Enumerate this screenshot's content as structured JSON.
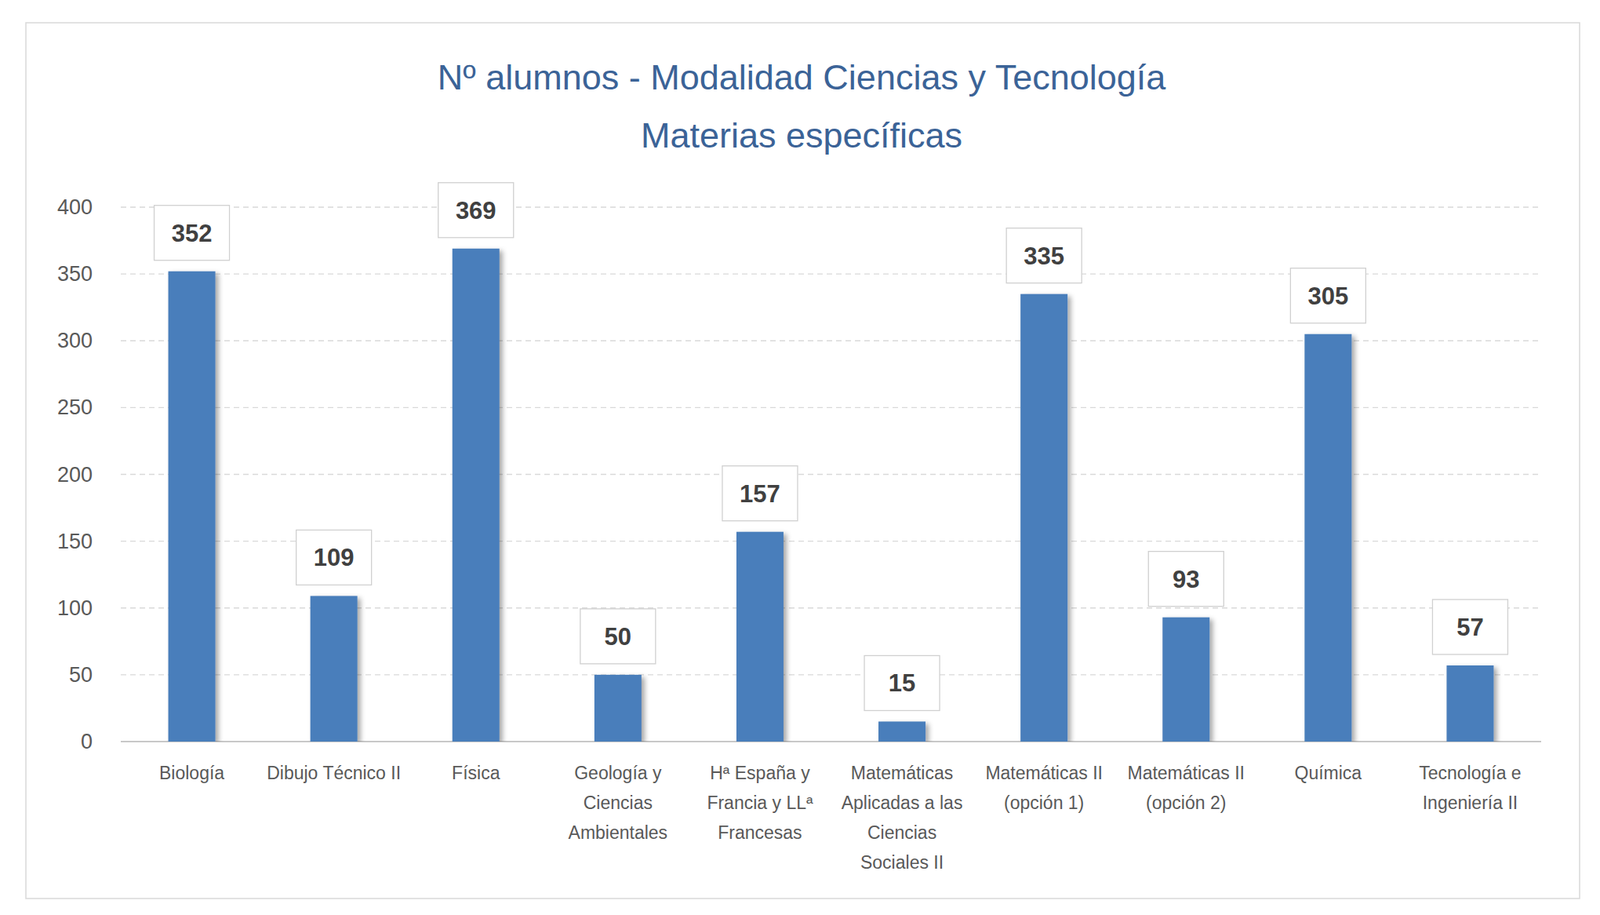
{
  "chart_data": {
    "type": "bar",
    "title": "Nº alumnos - Modalidad Ciencias y Tecnología",
    "subtitle": "Materias específicas",
    "categories": [
      "Biología",
      "Dibujo Técnico II",
      "Física",
      "Geología y Ciencias Ambientales",
      "Hª España y Francia y LLª Francesas",
      "Matemáticas Aplicadas a las Ciencias Sociales II",
      "Matemáticas II (opción 1)",
      "Matemáticas II (opción 2)",
      "Química",
      "Tecnología e Ingeniería II"
    ],
    "values": [
      352,
      109,
      369,
      50,
      157,
      15,
      335,
      93,
      305,
      57
    ],
    "color": "#4a7ebb",
    "ylim": [
      0,
      400
    ],
    "yticks": [
      0,
      50,
      100,
      150,
      200,
      250,
      300,
      350,
      400
    ],
    "grid": true,
    "data_labels": true
  }
}
